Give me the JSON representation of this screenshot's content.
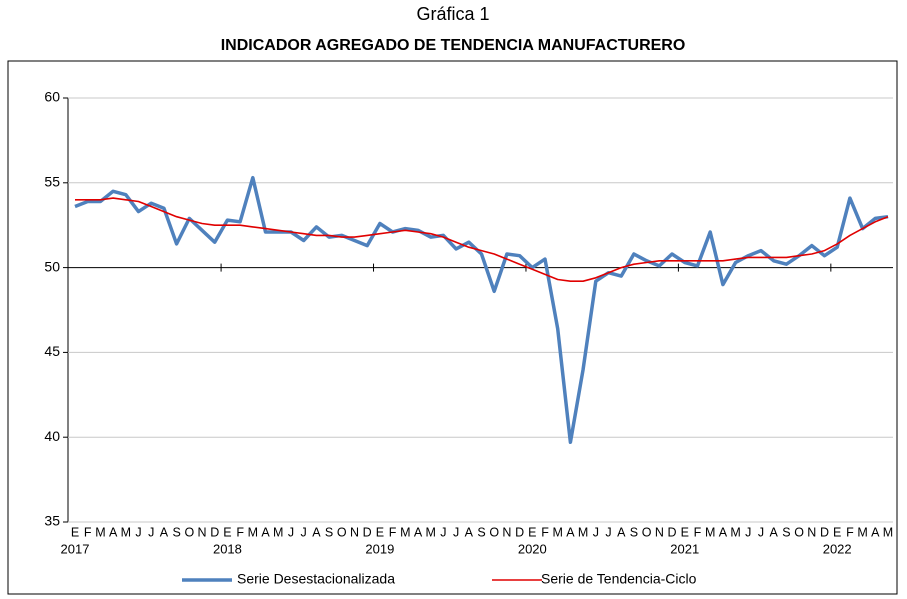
{
  "chart_data": {
    "type": "line",
    "title": "Gráfica 1",
    "subtitle": "INDICADOR AGREGADO DE TENDENCIA MANUFACTURERO",
    "categories": [
      "E",
      "F",
      "M",
      "A",
      "M",
      "J",
      "J",
      "A",
      "S",
      "O",
      "N",
      "D",
      "E",
      "F",
      "M",
      "A",
      "M",
      "J",
      "J",
      "A",
      "S",
      "O",
      "N",
      "D",
      "E",
      "F",
      "M",
      "A",
      "M",
      "J",
      "J",
      "A",
      "S",
      "O",
      "N",
      "D",
      "E",
      "F",
      "M",
      "A",
      "M",
      "J",
      "J",
      "A",
      "S",
      "O",
      "N",
      "D",
      "E",
      "F",
      "M",
      "A",
      "M",
      "J",
      "J",
      "A",
      "S",
      "O",
      "N",
      "D",
      "E",
      "F",
      "M",
      "A",
      "M"
    ],
    "years": [
      "2017",
      null,
      null,
      null,
      null,
      null,
      null,
      null,
      null,
      null,
      null,
      null,
      "2018",
      null,
      null,
      null,
      null,
      null,
      null,
      null,
      null,
      null,
      null,
      null,
      "2019",
      null,
      null,
      null,
      null,
      null,
      null,
      null,
      null,
      null,
      null,
      null,
      "2020",
      null,
      null,
      null,
      null,
      null,
      null,
      null,
      null,
      null,
      null,
      null,
      "2021",
      null,
      null,
      null,
      null,
      null,
      null,
      null,
      null,
      null,
      null,
      null,
      "2022",
      null,
      null,
      null,
      null
    ],
    "series": [
      {
        "name": "Serie Desestacionalizada",
        "color": "#4f81bd",
        "width": 3.5,
        "values": [
          53.6,
          53.9,
          53.9,
          54.5,
          54.3,
          53.3,
          53.8,
          53.5,
          51.4,
          52.9,
          52.2,
          51.5,
          52.8,
          52.7,
          55.3,
          52.1,
          52.1,
          52.1,
          51.6,
          52.4,
          51.8,
          51.9,
          51.6,
          51.3,
          52.6,
          52.1,
          52.3,
          52.2,
          51.8,
          51.9,
          51.1,
          51.5,
          50.8,
          48.6,
          50.8,
          50.7,
          50.0,
          50.5,
          46.4,
          39.7,
          44.0,
          49.2,
          49.7,
          49.5,
          50.8,
          50.4,
          50.1,
          50.8,
          50.3,
          50.1,
          52.1,
          49.0,
          50.3,
          50.7,
          51.0,
          50.4,
          50.2,
          50.7,
          51.3,
          50.7,
          51.2,
          54.1,
          52.3,
          52.9,
          53.0
        ]
      },
      {
        "name": "Serie de Tendencia-Ciclo",
        "color": "#e00000",
        "width": 1.6,
        "values": [
          54.0,
          54.0,
          54.0,
          54.1,
          54.0,
          53.9,
          53.6,
          53.3,
          53.0,
          52.8,
          52.6,
          52.5,
          52.5,
          52.5,
          52.4,
          52.3,
          52.2,
          52.1,
          52.0,
          51.9,
          51.9,
          51.8,
          51.8,
          51.9,
          52.0,
          52.1,
          52.2,
          52.1,
          52.0,
          51.8,
          51.5,
          51.2,
          51.0,
          50.8,
          50.5,
          50.2,
          49.9,
          49.6,
          49.3,
          49.2,
          49.2,
          49.4,
          49.7,
          50.0,
          50.2,
          50.3,
          50.4,
          50.4,
          50.4,
          50.4,
          50.4,
          50.4,
          50.5,
          50.6,
          50.6,
          50.6,
          50.6,
          50.7,
          50.8,
          51.0,
          51.4,
          51.9,
          52.3,
          52.7,
          53.0
        ]
      }
    ],
    "ylim": [
      35,
      60
    ],
    "yticks": [
      35,
      40,
      45,
      50,
      55,
      60
    ],
    "grid": true,
    "axis_crossing": 50
  }
}
